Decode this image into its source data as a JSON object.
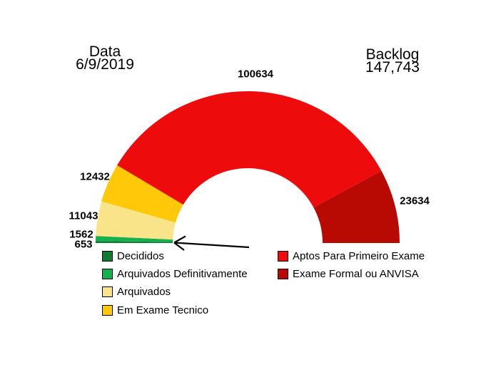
{
  "chart_data": {
    "type": "pie",
    "variant": "half-donut-gauge",
    "title_left": {
      "line1": "Data",
      "line2": "6/9/2019"
    },
    "title_right": {
      "line1": "Backlog",
      "line2": "147,743"
    },
    "segments": [
      {
        "label": "Decididos",
        "value": 653,
        "color": "#107C33"
      },
      {
        "label": "Arquivados Definitivamente",
        "value": 1562,
        "color": "#14B150"
      },
      {
        "label": "Arquivados",
        "value": 11043,
        "color": "#FAE48A"
      },
      {
        "label": "Em Exame Tecnico",
        "value": 12432,
        "color": "#FFC808"
      },
      {
        "label": "Aptos Para Primeiro Exame",
        "value": 100634,
        "color": "#EE0B0B"
      },
      {
        "label": "Exame Formal ou ANVISA",
        "value": 23634,
        "color": "#B80902"
      }
    ],
    "layout": {
      "start_angle_deg": 180,
      "end_angle_deg": 0,
      "legend_position": "bottom",
      "legend_columns": 2,
      "grid": false,
      "background": "#FFFFFF"
    }
  }
}
